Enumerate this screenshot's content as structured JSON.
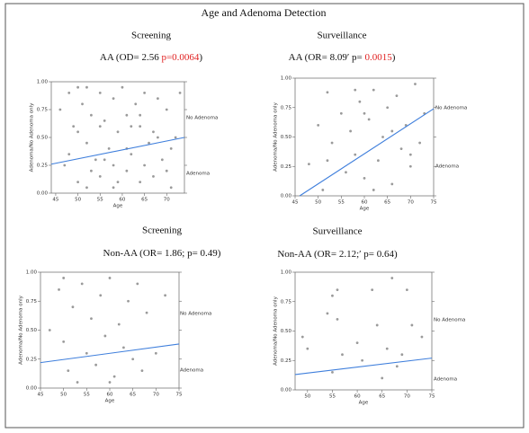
{
  "figure_title": "Age and Adenoma Detection",
  "chart_data": [
    {
      "type": "scatter",
      "heading": "Screening",
      "stat_title": [
        {
          "text": "AA (OD= 2.56 "
        },
        {
          "text": "p=0.0064",
          "color": "#e02020"
        },
        {
          "text": ")"
        }
      ],
      "xlabel": "Age",
      "ylabel": "Adenoma/No Adenoma only",
      "annotations": [
        "No Adenoma",
        "Adenoma"
      ],
      "xlim": [
        44,
        74
      ],
      "ylim": [
        0,
        1
      ],
      "xticks": [
        45,
        50,
        55,
        60,
        65,
        70
      ],
      "yticks": [
        {
          "value": 0,
          "label": "0.00"
        },
        {
          "value": 0.25,
          "label": "0.25"
        },
        {
          "value": 0.5,
          "label": "0.50"
        },
        {
          "value": 0.75,
          "label": "0.75"
        },
        {
          "value": 1,
          "label": "1.00"
        }
      ],
      "point_color": "#9a9a9a",
      "line_color": "#3f7fdc",
      "x": [
        46,
        47,
        48,
        49,
        50,
        50,
        51,
        52,
        52,
        53,
        54,
        55,
        55,
        56,
        57,
        58,
        58,
        59,
        60,
        61,
        61,
        62,
        63,
        64,
        64,
        65,
        66,
        67,
        68,
        69,
        70,
        71,
        72,
        73,
        48,
        50,
        53,
        56,
        59,
        62,
        65,
        68,
        71,
        52,
        55,
        58,
        61,
        64,
        67,
        70
      ],
      "y": [
        0.75,
        0.25,
        0.9,
        0.6,
        0.95,
        0.1,
        0.8,
        0.45,
        0.05,
        0.7,
        0.3,
        0.9,
        0.15,
        0.65,
        0.4,
        0.85,
        0.05,
        0.55,
        0.95,
        0.2,
        0.7,
        0.35,
        0.8,
        0.1,
        0.6,
        0.9,
        0.45,
        0.15,
        0.85,
        0.3,
        0.75,
        0.05,
        0.5,
        0.9,
        0.35,
        0.55,
        0.2,
        0.3,
        0.1,
        0.6,
        0.25,
        0.5,
        0.4,
        0.95,
        0.6,
        0.25,
        0.4,
        0.7,
        0.55,
        0.2
      ],
      "trend_line": {
        "x": [
          44,
          74
        ],
        "y": [
          0.26,
          0.5
        ]
      }
    },
    {
      "type": "scatter",
      "heading": "Surveillance",
      "stat_title": [
        {
          "text": "AA (OR= 8.09′ p= "
        },
        {
          "text": "0.0015",
          "color": "#e02020"
        },
        {
          "text": ")"
        }
      ],
      "xlabel": "Age",
      "ylabel": "Adenoma/No Adenoma only",
      "annotations": [
        "No Adenoma",
        "Adenoma"
      ],
      "xlim": [
        45,
        75
      ],
      "ylim": [
        0,
        1
      ],
      "xticks": [
        45,
        50,
        55,
        60,
        65,
        70,
        75
      ],
      "yticks": [
        {
          "value": 0,
          "label": "0.00"
        },
        {
          "value": 0.25,
          "label": "0.25"
        },
        {
          "value": 0.5,
          "label": "0.50"
        },
        {
          "value": 0.75,
          "label": "0.75"
        },
        {
          "value": 1,
          "label": "1.00"
        }
      ],
      "point_color": "#9a9a9a",
      "line_color": "#3f7fdc",
      "x": [
        48,
        50,
        51,
        52,
        53,
        55,
        56,
        57,
        58,
        59,
        60,
        61,
        62,
        63,
        64,
        65,
        66,
        67,
        68,
        69,
        70,
        71,
        72,
        73,
        52,
        58,
        62,
        66,
        70,
        60
      ],
      "y": [
        0.27,
        0.6,
        0.05,
        0.88,
        0.45,
        0.7,
        0.2,
        0.55,
        0.35,
        0.8,
        0.15,
        0.65,
        0.9,
        0.3,
        0.5,
        0.75,
        0.1,
        0.85,
        0.4,
        0.6,
        0.25,
        0.95,
        0.45,
        0.7,
        0.3,
        0.9,
        0.05,
        0.55,
        0.35,
        0.7
      ],
      "trend_line": {
        "x": [
          46,
          75
        ],
        "y": [
          0.0,
          0.74
        ]
      }
    },
    {
      "type": "scatter",
      "heading": "Screening",
      "stat_title": [
        {
          "text": "Non-AA (OR= 1.86; p= 0.49)"
        }
      ],
      "xlabel": "Age",
      "ylabel": "Adenoma/No Adenoma only",
      "annotations": [
        "No Adenoma",
        "Adenoma"
      ],
      "xlim": [
        45,
        75
      ],
      "ylim": [
        0,
        1
      ],
      "xticks": [
        45,
        50,
        55,
        60,
        65,
        70,
        75
      ],
      "yticks": [
        {
          "value": 0,
          "label": "0.00"
        },
        {
          "value": 0.25,
          "label": "0.25"
        },
        {
          "value": 0.5,
          "label": "0.50"
        },
        {
          "value": 0.75,
          "label": "0.75"
        },
        {
          "value": 1,
          "label": "1.00"
        }
      ],
      "point_color": "#9a9a9a",
      "line_color": "#3f7fdc",
      "x": [
        47,
        49,
        50,
        51,
        52,
        53,
        54,
        55,
        56,
        57,
        58,
        59,
        60,
        61,
        62,
        63,
        64,
        65,
        66,
        67,
        68,
        70,
        72,
        50,
        60
      ],
      "y": [
        0.5,
        0.85,
        0.4,
        0.15,
        0.7,
        0.05,
        0.9,
        0.3,
        0.6,
        0.2,
        0.8,
        0.45,
        0.95,
        0.1,
        0.55,
        0.35,
        0.75,
        0.25,
        0.9,
        0.15,
        0.65,
        0.3,
        0.8,
        0.95,
        0.05
      ],
      "trend_line": {
        "x": [
          45,
          75
        ],
        "y": [
          0.22,
          0.38
        ]
      }
    },
    {
      "type": "scatter",
      "heading": "Surveillance",
      "stat_title": [
        {
          "text": "Non-AA (OR= 2.12;′ p= 0.64)"
        }
      ],
      "xlabel": "Age",
      "ylabel": "Adenoma/No Adenoma only",
      "annotations": [
        "No Adenoma",
        "Adenoma"
      ],
      "xlim": [
        47.5,
        75
      ],
      "ylim": [
        0,
        1
      ],
      "xticks": [
        50,
        55,
        60,
        65,
        70,
        75
      ],
      "yticks": [
        {
          "value": 0,
          "label": "0.00"
        },
        {
          "value": 0.25,
          "label": "0.25"
        },
        {
          "value": 0.5,
          "label": "0.50"
        },
        {
          "value": 0.75,
          "label": "0.75"
        },
        {
          "value": 1,
          "label": "1.00"
        }
      ],
      "point_color": "#9a9a9a",
      "line_color": "#3f7fdc",
      "x": [
        49,
        50,
        54,
        55,
        55,
        56,
        57,
        60,
        61,
        63,
        64,
        65,
        66,
        67,
        68,
        69,
        70,
        71,
        73,
        56
      ],
      "y": [
        0.45,
        0.35,
        0.65,
        0.8,
        0.15,
        0.6,
        0.3,
        0.4,
        0.25,
        0.85,
        0.55,
        0.1,
        0.35,
        0.95,
        0.2,
        0.3,
        0.85,
        0.55,
        0.45,
        0.85
      ],
      "trend_line": {
        "x": [
          47.5,
          75
        ],
        "y": [
          0.13,
          0.27
        ]
      }
    }
  ]
}
